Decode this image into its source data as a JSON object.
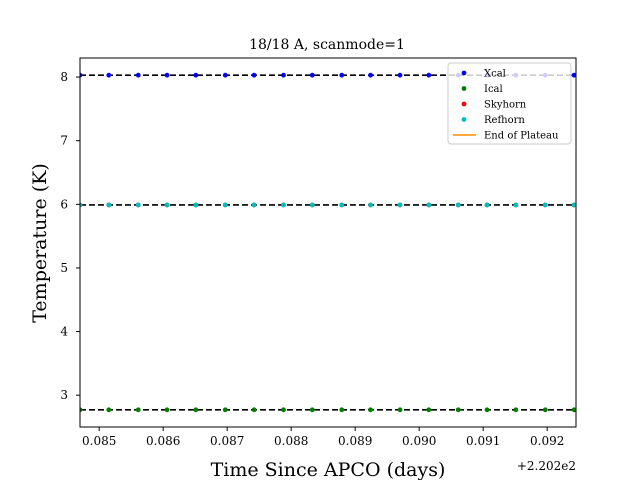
{
  "chart_data": {
    "type": "scatter",
    "title": "18/18 A, scanmode=1",
    "xlabel": "Time Since APCO (days)",
    "ylabel": "Temperature (K)",
    "x_offset_label": "+2.202e2",
    "x_offset": 220.2,
    "xlim": [
      0.0847,
      0.09245
    ],
    "ylim": [
      2.5,
      8.3
    ],
    "x_ticks": [
      0.085,
      0.086,
      0.087,
      0.088,
      0.089,
      0.09,
      0.091,
      0.092
    ],
    "x_tick_labels": [
      "0.085",
      "0.086",
      "0.087",
      "0.088",
      "0.089",
      "0.090",
      "0.091",
      "0.092"
    ],
    "y_ticks": [
      3,
      4,
      5,
      6,
      7,
      8
    ],
    "y_tick_labels": [
      "3",
      "4",
      "5",
      "6",
      "7",
      "8"
    ],
    "grid": false,
    "legend_position": "upper-right",
    "x": [
      0.0847,
      0.08515,
      0.08561,
      0.08606,
      0.08651,
      0.08697,
      0.08742,
      0.08788,
      0.08833,
      0.08879,
      0.08924,
      0.0897,
      0.09015,
      0.09061,
      0.09106,
      0.09151,
      0.09197,
      0.09242
    ],
    "series": [
      {
        "name": "Xcal",
        "color": "#0000ff",
        "values": [
          8.03,
          8.03,
          8.03,
          8.03,
          8.03,
          8.03,
          8.03,
          8.03,
          8.03,
          8.03,
          8.03,
          8.03,
          8.03,
          8.03,
          8.03,
          8.03,
          8.03,
          8.03
        ]
      },
      {
        "name": "Ical",
        "color": "#008000",
        "values": [
          2.77,
          2.77,
          2.77,
          2.77,
          2.77,
          2.77,
          2.77,
          2.77,
          2.77,
          2.77,
          2.77,
          2.77,
          2.77,
          2.77,
          2.77,
          2.77,
          2.77,
          2.77
        ]
      },
      {
        "name": "Skyhorn",
        "color": "#ff0000",
        "values": [
          5.99,
          5.99,
          5.99,
          5.99,
          5.99,
          5.99,
          5.99,
          5.99,
          5.99,
          5.99,
          5.99,
          5.99,
          5.99,
          5.99,
          5.99,
          5.99,
          5.99,
          5.99
        ]
      },
      {
        "name": "Refhorn",
        "color": "#00bfbf",
        "values": [
          5.99,
          5.99,
          5.99,
          5.99,
          5.99,
          5.99,
          5.99,
          5.99,
          5.99,
          5.99,
          5.99,
          5.99,
          5.99,
          5.99,
          5.99,
          5.99,
          5.99,
          5.99
        ]
      }
    ],
    "reference_lines": [
      {
        "y": 8.03,
        "style": "dashed",
        "color": "#000000"
      },
      {
        "y": 5.99,
        "style": "dashed",
        "color": "#000000"
      },
      {
        "y": 2.77,
        "style": "dashed",
        "color": "#000000"
      }
    ],
    "legend": [
      {
        "label": "Xcal",
        "color": "#0000ff",
        "marker": "dot"
      },
      {
        "label": "Ical",
        "color": "#008000",
        "marker": "dot"
      },
      {
        "label": "Skyhorn",
        "color": "#ff0000",
        "marker": "dot"
      },
      {
        "label": "Refhorn",
        "color": "#00bfbf",
        "marker": "dot"
      },
      {
        "label": "End of Plateau",
        "color": "#ff8c00",
        "marker": "line"
      }
    ]
  }
}
